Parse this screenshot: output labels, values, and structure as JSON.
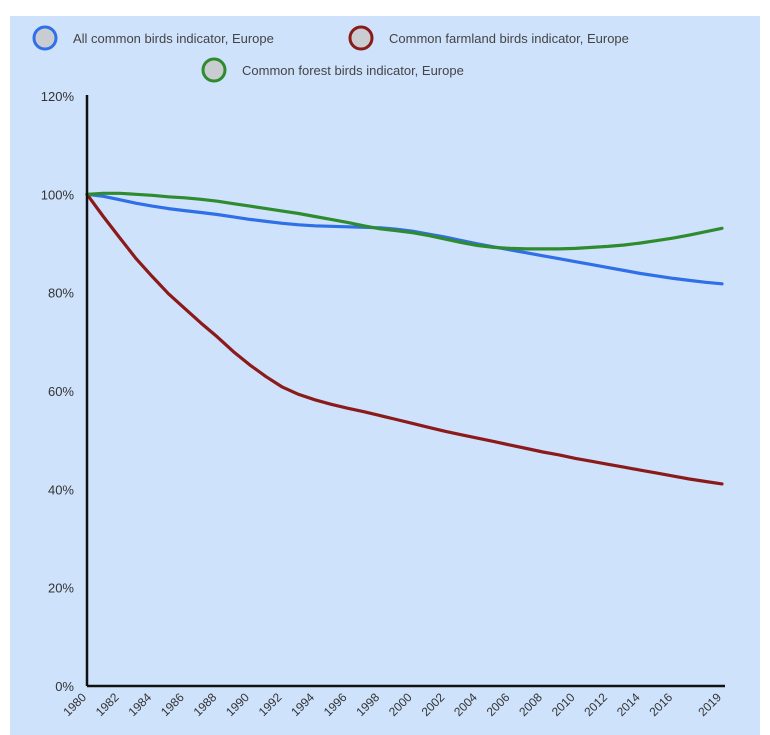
{
  "chart_data": {
    "type": "line",
    "title": "",
    "xlabel": "",
    "ylabel": "",
    "x": [
      1980,
      1981,
      1982,
      1983,
      1984,
      1985,
      1986,
      1987,
      1988,
      1989,
      1990,
      1991,
      1992,
      1993,
      1994,
      1995,
      1996,
      1997,
      1998,
      1999,
      2000,
      2001,
      2002,
      2003,
      2004,
      2005,
      2006,
      2007,
      2008,
      2009,
      2010,
      2011,
      2012,
      2013,
      2014,
      2015,
      2016,
      2017,
      2018,
      2019
    ],
    "x_tick_labels": [
      "1980",
      "1982",
      "1984",
      "1986",
      "1988",
      "1990",
      "1992",
      "1994",
      "1996",
      "1998",
      "2000",
      "2002",
      "2004",
      "2006",
      "2008",
      "2010",
      "2012",
      "2014",
      "2016",
      "2019"
    ],
    "x_tick_values": [
      1980,
      1982,
      1984,
      1986,
      1988,
      1990,
      1992,
      1994,
      1996,
      1998,
      2000,
      2002,
      2004,
      2006,
      2008,
      2010,
      2012,
      2014,
      2016,
      2019
    ],
    "y_tick_labels": [
      "0%",
      "20%",
      "40%",
      "60%",
      "80%",
      "100%",
      "120%"
    ],
    "y_tick_values": [
      0,
      20,
      40,
      60,
      80,
      100,
      120
    ],
    "xlim": [
      1980,
      2019
    ],
    "ylim": [
      0,
      120
    ],
    "grid": false,
    "legend_position": "top-center",
    "series": [
      {
        "name": "All common birds indicator, Europe",
        "color": "#2f6fe8",
        "values": [
          100,
          99.6,
          98.9,
          98.2,
          97.6,
          97.1,
          96.7,
          96.3,
          95.9,
          95.4,
          94.9,
          94.5,
          94.1,
          93.8,
          93.6,
          93.5,
          93.4,
          93.3,
          93.2,
          92.9,
          92.5,
          91.9,
          91.3,
          90.6,
          89.9,
          89.3,
          88.7,
          88.1,
          87.5,
          86.9,
          86.3,
          85.7,
          85.1,
          84.5,
          83.9,
          83.4,
          82.9,
          82.5,
          82.1,
          81.8
        ]
      },
      {
        "name": "Common farmland birds indicator, Europe",
        "color": "#8b1a1a",
        "values": [
          100,
          95.5,
          91.2,
          87,
          83.3,
          79.8,
          76.8,
          73.8,
          71,
          68,
          65.3,
          62.9,
          60.8,
          59.3,
          58.2,
          57.3,
          56.5,
          55.8,
          55,
          54.2,
          53.4,
          52.6,
          51.8,
          51.1,
          50.4,
          49.7,
          49,
          48.3,
          47.6,
          47,
          46.3,
          45.7,
          45.1,
          44.5,
          43.9,
          43.3,
          42.7,
          42.1,
          41.6,
          41.1
        ]
      },
      {
        "name": "Common forest birds indicator, Europe",
        "color": "#2e8b2e",
        "values": [
          100,
          100.2,
          100.2,
          100,
          99.8,
          99.5,
          99.3,
          99,
          98.6,
          98.1,
          97.6,
          97.1,
          96.6,
          96.1,
          95.5,
          94.9,
          94.3,
          93.6,
          93,
          92.6,
          92.2,
          91.6,
          90.9,
          90.2,
          89.6,
          89.2,
          89,
          88.9,
          88.9,
          88.9,
          89,
          89.2,
          89.4,
          89.7,
          90.1,
          90.6,
          91.1,
          91.7,
          92.4,
          93.1
        ]
      }
    ]
  }
}
